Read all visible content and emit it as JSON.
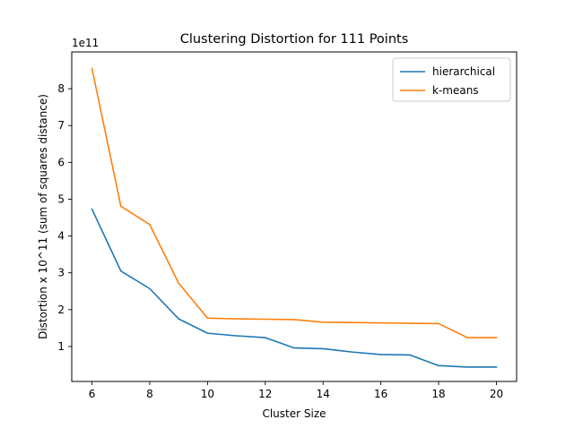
{
  "chart_data": {
    "type": "line",
    "title": "Clustering Distortion for 111 Points",
    "xlabel": "Cluster Size",
    "ylabel": "Distortion x 10^11 (sum of squares distance)",
    "y_offset_text": "1e11",
    "xlim": [
      5.3,
      20.7
    ],
    "ylim": [
      0.05,
      9.0
    ],
    "x_ticks": [
      6,
      8,
      10,
      12,
      14,
      16,
      18,
      20
    ],
    "y_ticks": [
      1,
      2,
      3,
      4,
      5,
      6,
      7,
      8
    ],
    "x": [
      6,
      7,
      8,
      9,
      10,
      11,
      12,
      13,
      14,
      15,
      16,
      17,
      18,
      19,
      20
    ],
    "series": [
      {
        "name": "hierarchical",
        "color": "#1f77b4",
        "values": [
          4.73,
          3.05,
          2.57,
          1.75,
          1.36,
          1.29,
          1.24,
          0.96,
          0.94,
          0.85,
          0.78,
          0.77,
          0.48,
          0.44,
          0.44
        ]
      },
      {
        "name": "k-means",
        "color": "#ff7f0e",
        "values": [
          8.55,
          4.81,
          4.31,
          2.72,
          1.77,
          1.75,
          1.74,
          1.73,
          1.66,
          1.65,
          1.64,
          1.63,
          1.62,
          1.24,
          1.24
        ]
      }
    ],
    "legend_position": "top-right",
    "grid": false
  }
}
